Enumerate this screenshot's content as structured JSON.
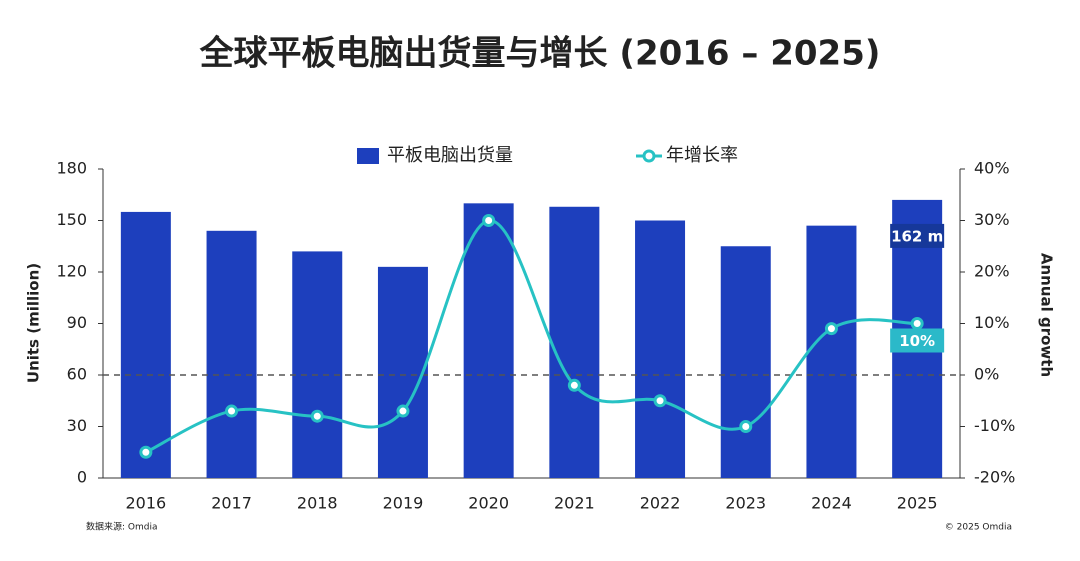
{
  "chart_data": {
    "type": "bar_line",
    "title": "全球平板电脑出货量与增长 (2016 – 2025)",
    "ylabel": "Units (million)",
    "y2label": "Annual growth",
    "source": "数据来源: Omdia",
    "copyright": "© 2025 Omdia",
    "categories": [
      "2016",
      "2017",
      "2018",
      "2019",
      "2020",
      "2021",
      "2022",
      "2023",
      "2024",
      "2025"
    ],
    "series": [
      {
        "name": "平板电脑出货量",
        "type": "bar",
        "color": "#1d3fbd",
        "values": [
          155,
          144,
          132,
          123,
          160,
          158,
          150,
          135,
          147,
          162
        ],
        "value_labels": [
          null,
          null,
          null,
          null,
          null,
          null,
          null,
          null,
          null,
          "162 m"
        ]
      },
      {
        "name": "年增长率",
        "type": "line",
        "axis": "y2",
        "color": "#27c2c4",
        "values": [
          -15,
          -7,
          -8,
          -7,
          30,
          -2,
          -5,
          -10,
          9,
          10
        ],
        "value_labels": [
          null,
          null,
          null,
          null,
          null,
          null,
          null,
          null,
          null,
          "10%"
        ]
      }
    ],
    "ylim": [
      0,
      180
    ],
    "yticks": [
      0,
      30,
      60,
      90,
      120,
      150,
      180
    ],
    "y2lim": [
      -20,
      40
    ],
    "y2ticks": [
      {
        "value": -20,
        "label": "-20%"
      },
      {
        "value": -10,
        "label": "-10%"
      },
      {
        "value": 0,
        "label": "0%"
      },
      {
        "value": 10,
        "label": "10%"
      },
      {
        "value": 20,
        "label": "20%"
      },
      {
        "value": 30,
        "label": "30%"
      },
      {
        "value": 40,
        "label": "40%"
      }
    ],
    "legend": "top"
  }
}
